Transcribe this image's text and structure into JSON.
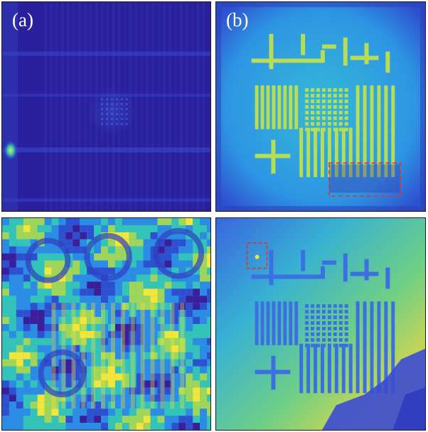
{
  "figure": {
    "panels": [
      {
        "id": "a",
        "label": "(a)",
        "kind": "amplitude-blurred"
      },
      {
        "id": "b",
        "label": "(b)",
        "kind": "amplitude-reconstructed"
      },
      {
        "id": "c",
        "label": "",
        "kind": "phase-wrapped"
      },
      {
        "id": "d",
        "label": "",
        "kind": "phase-reconstructed"
      }
    ],
    "colormap": [
      "#3b1e9a",
      "#2f4fd1",
      "#2c8be4",
      "#33c3b8",
      "#9fd65a",
      "#f3e53a"
    ],
    "annotation_color": "#e0322a"
  }
}
